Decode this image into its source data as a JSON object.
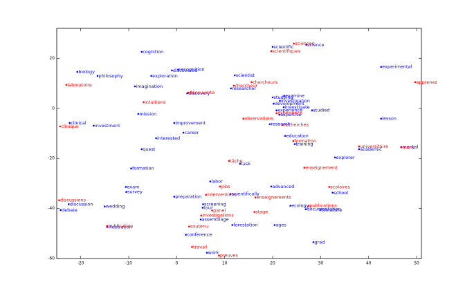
{
  "chart_data": {
    "type": "scatter",
    "xlim": [
      -25,
      51
    ],
    "ylim": [
      -60,
      32
    ],
    "xticks": [
      -20,
      -10,
      0,
      10,
      20,
      30,
      40,
      50
    ],
    "yticks": [
      -60,
      -40,
      -20,
      0,
      20
    ],
    "series": [
      {
        "color": "#0000ff",
        "labels": [
          "cognition",
          "biology",
          "philosophy",
          "exploration",
          "imagination",
          "discovered",
          "recognition",
          "scientist",
          "scientific",
          "science",
          "experimental",
          "researcher",
          "discovery",
          "studying",
          "examine",
          "investigation",
          "development",
          "investigate",
          "experience",
          "expertise",
          "studied",
          "research",
          "lesson",
          "mission",
          "clinical",
          "investment",
          "improvement",
          "career",
          "interested",
          "quest",
          "education",
          "training",
          "explorer",
          "academic",
          "mental",
          "task",
          "formation",
          "labor",
          "exam",
          "survey",
          "preparation",
          "scientifically",
          "advanced",
          "school",
          "discussion",
          "debate",
          "wedding",
          "screening",
          "tour",
          "ecology",
          "documentation",
          "literature",
          "assemblage",
          "conference",
          "forestation",
          "ages",
          "grad",
          "work",
          "illustration"
        ],
        "x": [
          -7.3,
          -20.7,
          -16.5,
          -5.3,
          -8.7,
          -1.0,
          0.3,
          12.1,
          20.0,
          27.0,
          42.6,
          11.3,
          2.2,
          20.0,
          22.4,
          21.5,
          20.2,
          22.3,
          20.8,
          21.4,
          28.2,
          19.4,
          42.6,
          -8.0,
          -22.3,
          -17.3,
          -0.5,
          1.4,
          -4.3,
          -7.3,
          22.6,
          24.6,
          33.0,
          38.0,
          46.8,
          13.2,
          -9.5,
          7.0,
          -10.6,
          -10.5,
          -0.5,
          11.2,
          19.7,
          32.5,
          -22.5,
          -24.2,
          -15.0,
          5.5,
          5.4,
          23.7,
          26.9,
          29.9,
          5.0,
          1.9,
          11.6,
          20.4,
          28.5,
          6.3,
          -14.5
        ],
        "y": [
          22.6,
          14.6,
          13.0,
          13.0,
          8.8,
          15.2,
          15.5,
          13.2,
          24.6,
          25.4,
          16.6,
          8.0,
          6.0,
          4.4,
          5.0,
          3.0,
          1.9,
          0.5,
          -0.8,
          -2.5,
          -0.8,
          -6.3,
          -4.1,
          -2.2,
          -5.8,
          -6.9,
          -5.8,
          -9.7,
          -11.9,
          -16.3,
          -11.0,
          -14.3,
          -19.6,
          -16.3,
          -15.4,
          -22.1,
          -24.0,
          -29.2,
          -31.4,
          -33.4,
          -35.3,
          -34.2,
          -31.2,
          -33.7,
          -38.3,
          -40.6,
          -39.2,
          -38.3,
          -39.7,
          -38.9,
          -40.3,
          -40.6,
          -44.4,
          -50.5,
          -46.6,
          -46.6,
          -53.5,
          -57.7,
          -47.4
        ]
      },
      {
        "color": "#ff0000",
        "labels": [
          "sciences",
          "scientifiques",
          "laboratoire",
          "intuitions",
          "découverte",
          "chercheurs",
          "chercheur",
          "recherches",
          "observations",
          "expérience",
          "formation",
          "universitaire",
          "moral",
          "apprenez",
          "enseignement",
          "tâche",
          "jobs",
          "interventions",
          "enseignements",
          "scolaires",
          "publications",
          "stage",
          "panel",
          "investigations",
          "soutenu",
          "travail",
          "preuves",
          "discussions",
          "publication",
          "clinique"
        ],
        "x": [
          24.4,
          19.7,
          -23.0,
          -6.9,
          2.4,
          15.6,
          11.9,
          22.1,
          13.9,
          20.8,
          24.3,
          38.0,
          46.8,
          49.7,
          26.6,
          10.9,
          9.0,
          6.1,
          16.4,
          31.8,
          27.5,
          16.2,
          7.4,
          5.1,
          2.6,
          3.2,
          8.8,
          -24.5,
          -14.5,
          -24.3
        ],
        "y": [
          25.9,
          22.9,
          9.4,
          2.5,
          6.3,
          10.5,
          9.1,
          -6.6,
          -4.1,
          -1.9,
          -13.0,
          -15.2,
          -15.6,
          10.5,
          -23.7,
          -21.0,
          -31.2,
          -34.5,
          -35.6,
          -31.4,
          -38.9,
          -41.4,
          -40.8,
          -42.8,
          -47.2,
          -55.4,
          -58.8,
          -36.7,
          -47.0,
          -7.2
        ]
      }
    ]
  }
}
